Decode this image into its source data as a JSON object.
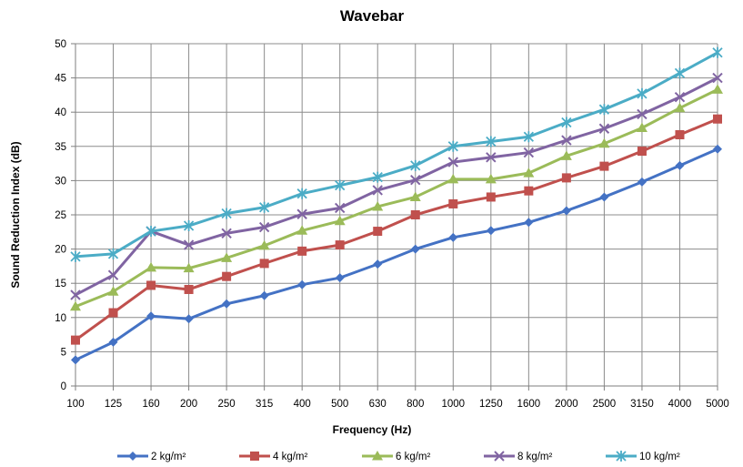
{
  "chart_data": {
    "type": "line",
    "title": "Wavebar",
    "xlabel": "Frequency (Hz)",
    "ylabel": "Sound Reduction Index (dB)",
    "categories": [
      "100",
      "125",
      "160",
      "200",
      "250",
      "315",
      "400",
      "500",
      "630",
      "800",
      "1000",
      "1250",
      "1600",
      "2000",
      "2500",
      "3150",
      "4000",
      "5000"
    ],
    "ylim": [
      0,
      50
    ],
    "yticks": [
      0,
      5,
      10,
      15,
      20,
      25,
      30,
      35,
      40,
      45,
      50
    ],
    "grid": true,
    "legend_position": "bottom",
    "series": [
      {
        "name": "2 kg/m²",
        "color": "#4472C4",
        "marker": "diamond",
        "values": [
          3.8,
          6.4,
          10.2,
          9.8,
          12.0,
          13.2,
          14.8,
          15.8,
          17.8,
          20.0,
          21.7,
          22.7,
          23.9,
          25.6,
          27.6,
          29.8,
          32.2,
          34.6
        ]
      },
      {
        "name": "4 kg/m²",
        "color": "#C0504D",
        "marker": "square",
        "values": [
          6.7,
          10.7,
          14.7,
          14.1,
          16.0,
          17.9,
          19.7,
          20.6,
          22.6,
          25.0,
          26.6,
          27.6,
          28.5,
          30.4,
          32.1,
          34.3,
          36.7,
          39.0
        ]
      },
      {
        "name": "6 kg/m²",
        "color": "#9BBB59",
        "marker": "triangle",
        "values": [
          11.6,
          13.8,
          17.3,
          17.2,
          18.7,
          20.5,
          22.7,
          24.1,
          26.2,
          27.6,
          30.2,
          30.2,
          31.1,
          33.6,
          35.4,
          37.7,
          40.6,
          43.3
        ]
      },
      {
        "name": "8 kg/m²",
        "color": "#8064A2",
        "marker": "x",
        "values": [
          13.3,
          16.2,
          22.6,
          20.6,
          22.3,
          23.2,
          25.1,
          26.0,
          28.6,
          30.1,
          32.7,
          33.4,
          34.1,
          35.9,
          37.6,
          39.7,
          42.2,
          45.0
        ]
      },
      {
        "name": "10 kg/m²",
        "color": "#4BACC6",
        "marker": "star",
        "values": [
          18.9,
          19.3,
          22.6,
          23.4,
          25.2,
          26.1,
          28.1,
          29.3,
          30.5,
          32.2,
          35.0,
          35.7,
          36.4,
          38.5,
          40.4,
          42.7,
          45.7,
          48.7
        ]
      }
    ]
  }
}
